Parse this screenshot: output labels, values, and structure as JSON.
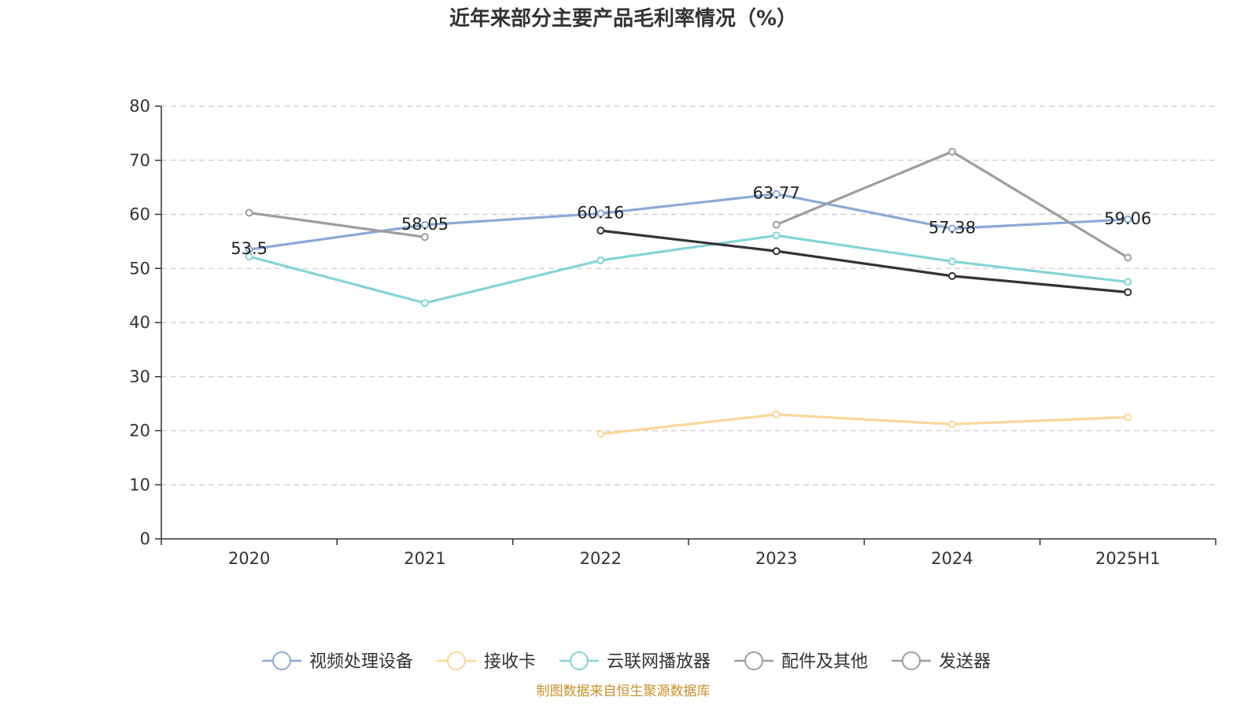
{
  "title": "近年来部分主要产品毛利率情况（%）",
  "source_note": "制图数据来自恒生聚源数据库",
  "chart_data": {
    "type": "line",
    "categories": [
      "2020",
      "2021",
      "2022",
      "2023",
      "2024",
      "2025H1"
    ],
    "ylim": [
      0,
      80
    ],
    "yticks": [
      0,
      10,
      20,
      30,
      40,
      50,
      60,
      70,
      80
    ],
    "grid": true,
    "legend_position": "bottom",
    "series": [
      {
        "name": "视频处理设备",
        "color": "#8ca9d8",
        "values": [
          53.5,
          58.05,
          60.16,
          63.77,
          57.38,
          59.06
        ],
        "labels": [
          "53.5",
          "58.05",
          "60.16",
          "63.77",
          "57.38",
          "59.06"
        ]
      },
      {
        "name": "接收卡",
        "color": "#fbd79a",
        "values": [
          null,
          null,
          19.4,
          23.0,
          21.2,
          22.5
        ]
      },
      {
        "name": "云联网播放器",
        "color": "#84d4d6",
        "values": [
          52.2,
          43.6,
          51.5,
          56.1,
          51.3,
          47.5
        ]
      },
      {
        "name": "配件及其他",
        "color": "#9e9e9e",
        "values": [
          60.3,
          55.8,
          null,
          null,
          null,
          null
        ]
      },
      {
        "name": "发送器",
        "color": "#9e9e9e",
        "values": [
          null,
          null,
          null,
          58.1,
          71.6,
          52.0
        ]
      },
      {
        "name": "",
        "color": "#333333",
        "values": [
          null,
          null,
          57.0,
          53.2,
          48.6,
          45.6
        ]
      }
    ]
  }
}
